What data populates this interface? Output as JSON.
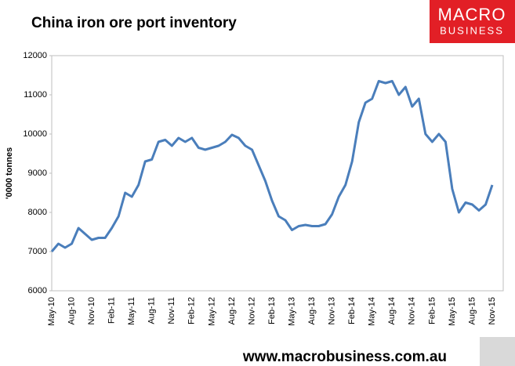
{
  "chart_data": {
    "type": "line",
    "title": "China iron ore port inventory",
    "y_label": "'0000 tonnes",
    "footer": "www.macrobusiness.com.au",
    "logo": [
      "MACRO",
      "BUSINESS"
    ],
    "categories": [
      "May-10",
      null,
      null,
      "Aug-10",
      null,
      null,
      "Nov-10",
      null,
      null,
      "Feb-11",
      null,
      null,
      "May-11",
      null,
      null,
      "Aug-11",
      null,
      null,
      "Nov-11",
      null,
      null,
      "Feb-12",
      null,
      null,
      "May-12",
      null,
      null,
      "Aug-12",
      null,
      null,
      "Nov-12",
      null,
      null,
      "Feb-13",
      null,
      null,
      "May-13",
      null,
      null,
      "Aug-13",
      null,
      null,
      "Nov-13",
      null,
      null,
      "Feb-14",
      null,
      null,
      "May-14",
      null,
      null,
      "Aug-14",
      null,
      null,
      "Nov-14",
      null,
      null,
      "Feb-15",
      null,
      null,
      "May-15",
      null,
      null,
      "Aug-15",
      null,
      null,
      "Nov-15"
    ],
    "series": [
      {
        "name": "Inventory",
        "color": "#4a7ebb",
        "values": [
          7000,
          7200,
          7100,
          7200,
          7600,
          7450,
          7300,
          7350,
          7350,
          7600,
          7900,
          8500,
          8400,
          8700,
          9300,
          9350,
          9800,
          9850,
          9700,
          9900,
          9800,
          9900,
          9650,
          9600,
          9650,
          9700,
          9800,
          9980,
          9900,
          9700,
          9600,
          9200,
          8800,
          8300,
          7900,
          7800,
          7550,
          7650,
          7680,
          7650,
          7650,
          7700,
          7950,
          8400,
          8700,
          9300,
          10300,
          10800,
          10900,
          11350,
          11300,
          11350,
          11000,
          11200,
          10700,
          10900,
          10000,
          9800,
          10000,
          9800,
          8600,
          8000,
          8250,
          8200,
          8050,
          8200,
          8700
        ]
      }
    ],
    "ylim": [
      6000,
      12000
    ],
    "yticks": [
      6000,
      7000,
      8000,
      9000,
      10000,
      11000,
      12000
    ],
    "grid": false
  }
}
